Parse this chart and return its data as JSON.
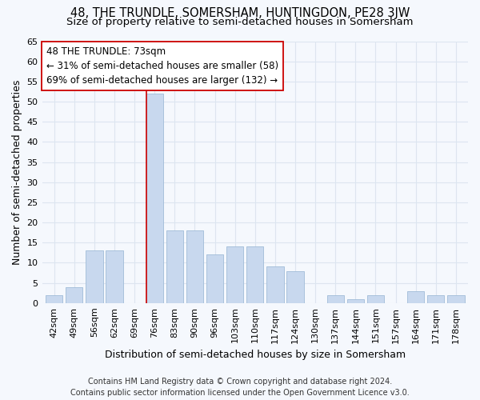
{
  "title": "48, THE TRUNDLE, SOMERSHAM, HUNTINGDON, PE28 3JW",
  "subtitle": "Size of property relative to semi-detached houses in Somersham",
  "xlabel": "Distribution of semi-detached houses by size in Somersham",
  "ylabel": "Number of semi-detached properties",
  "categories": [
    "42sqm",
    "49sqm",
    "56sqm",
    "62sqm",
    "69sqm",
    "76sqm",
    "83sqm",
    "90sqm",
    "96sqm",
    "103sqm",
    "110sqm",
    "117sqm",
    "124sqm",
    "130sqm",
    "137sqm",
    "144sqm",
    "151sqm",
    "157sqm",
    "164sqm",
    "171sqm",
    "178sqm"
  ],
  "values": [
    2,
    4,
    13,
    13,
    0,
    52,
    18,
    18,
    12,
    14,
    14,
    9,
    8,
    0,
    2,
    1,
    2,
    0,
    3,
    2,
    2
  ],
  "bar_color": "#c8d8ee",
  "bar_edge_color": "#a0bcd8",
  "highlight_index": 5,
  "highlight_line_color": "#cc0000",
  "annotation_line1": "48 THE TRUNDLE: 73sqm",
  "annotation_line2": "← 31% of semi-detached houses are smaller (58)",
  "annotation_line3": "69% of semi-detached houses are larger (132) →",
  "annotation_box_color": "#ffffff",
  "annotation_box_edge": "#cc0000",
  "ylim": [
    0,
    65
  ],
  "yticks": [
    0,
    5,
    10,
    15,
    20,
    25,
    30,
    35,
    40,
    45,
    50,
    55,
    60,
    65
  ],
  "footer_line1": "Contains HM Land Registry data © Crown copyright and database right 2024.",
  "footer_line2": "Contains public sector information licensed under the Open Government Licence v3.0.",
  "bg_color": "#f5f8fd",
  "grid_color": "#dde5f0",
  "title_fontsize": 10.5,
  "subtitle_fontsize": 9.5,
  "axis_label_fontsize": 9,
  "tick_fontsize": 8,
  "footer_fontsize": 7
}
